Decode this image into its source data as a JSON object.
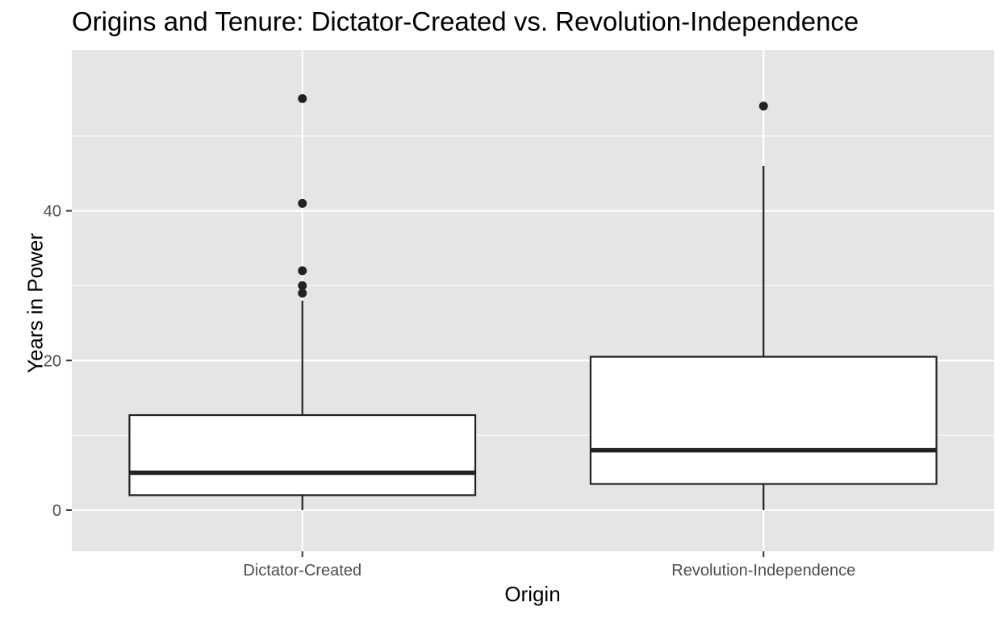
{
  "chart_data": {
    "type": "boxplot",
    "title": "Origins and Tenure: Dictator-Created vs. Revolution-Independence",
    "xlabel": "Origin",
    "ylabel": "Years in Power",
    "categories": [
      "Dictator-Created",
      "Revolution-Independence"
    ],
    "ylim": [
      -5.5,
      61.5
    ],
    "yticks": [
      0,
      20,
      40
    ],
    "grid": true,
    "legend": "none",
    "boxes": [
      {
        "category": "Dictator-Created",
        "whisker_low": 0,
        "q1": 2,
        "median": 5,
        "q3": 12.7,
        "whisker_high": 28,
        "outliers": [
          29,
          30,
          32,
          41,
          55
        ]
      },
      {
        "category": "Revolution-Independence",
        "whisker_low": 0,
        "q1": 3.5,
        "median": 8,
        "q3": 20.5,
        "whisker_high": 46,
        "outliers": [
          54
        ]
      }
    ],
    "colors": {
      "panel": "#e5e5e5",
      "grid": "#ffffff",
      "box_fill": "#ffffff",
      "stroke": "#222222",
      "axis_text": "#4d4d4d",
      "tick": "#333333"
    }
  }
}
